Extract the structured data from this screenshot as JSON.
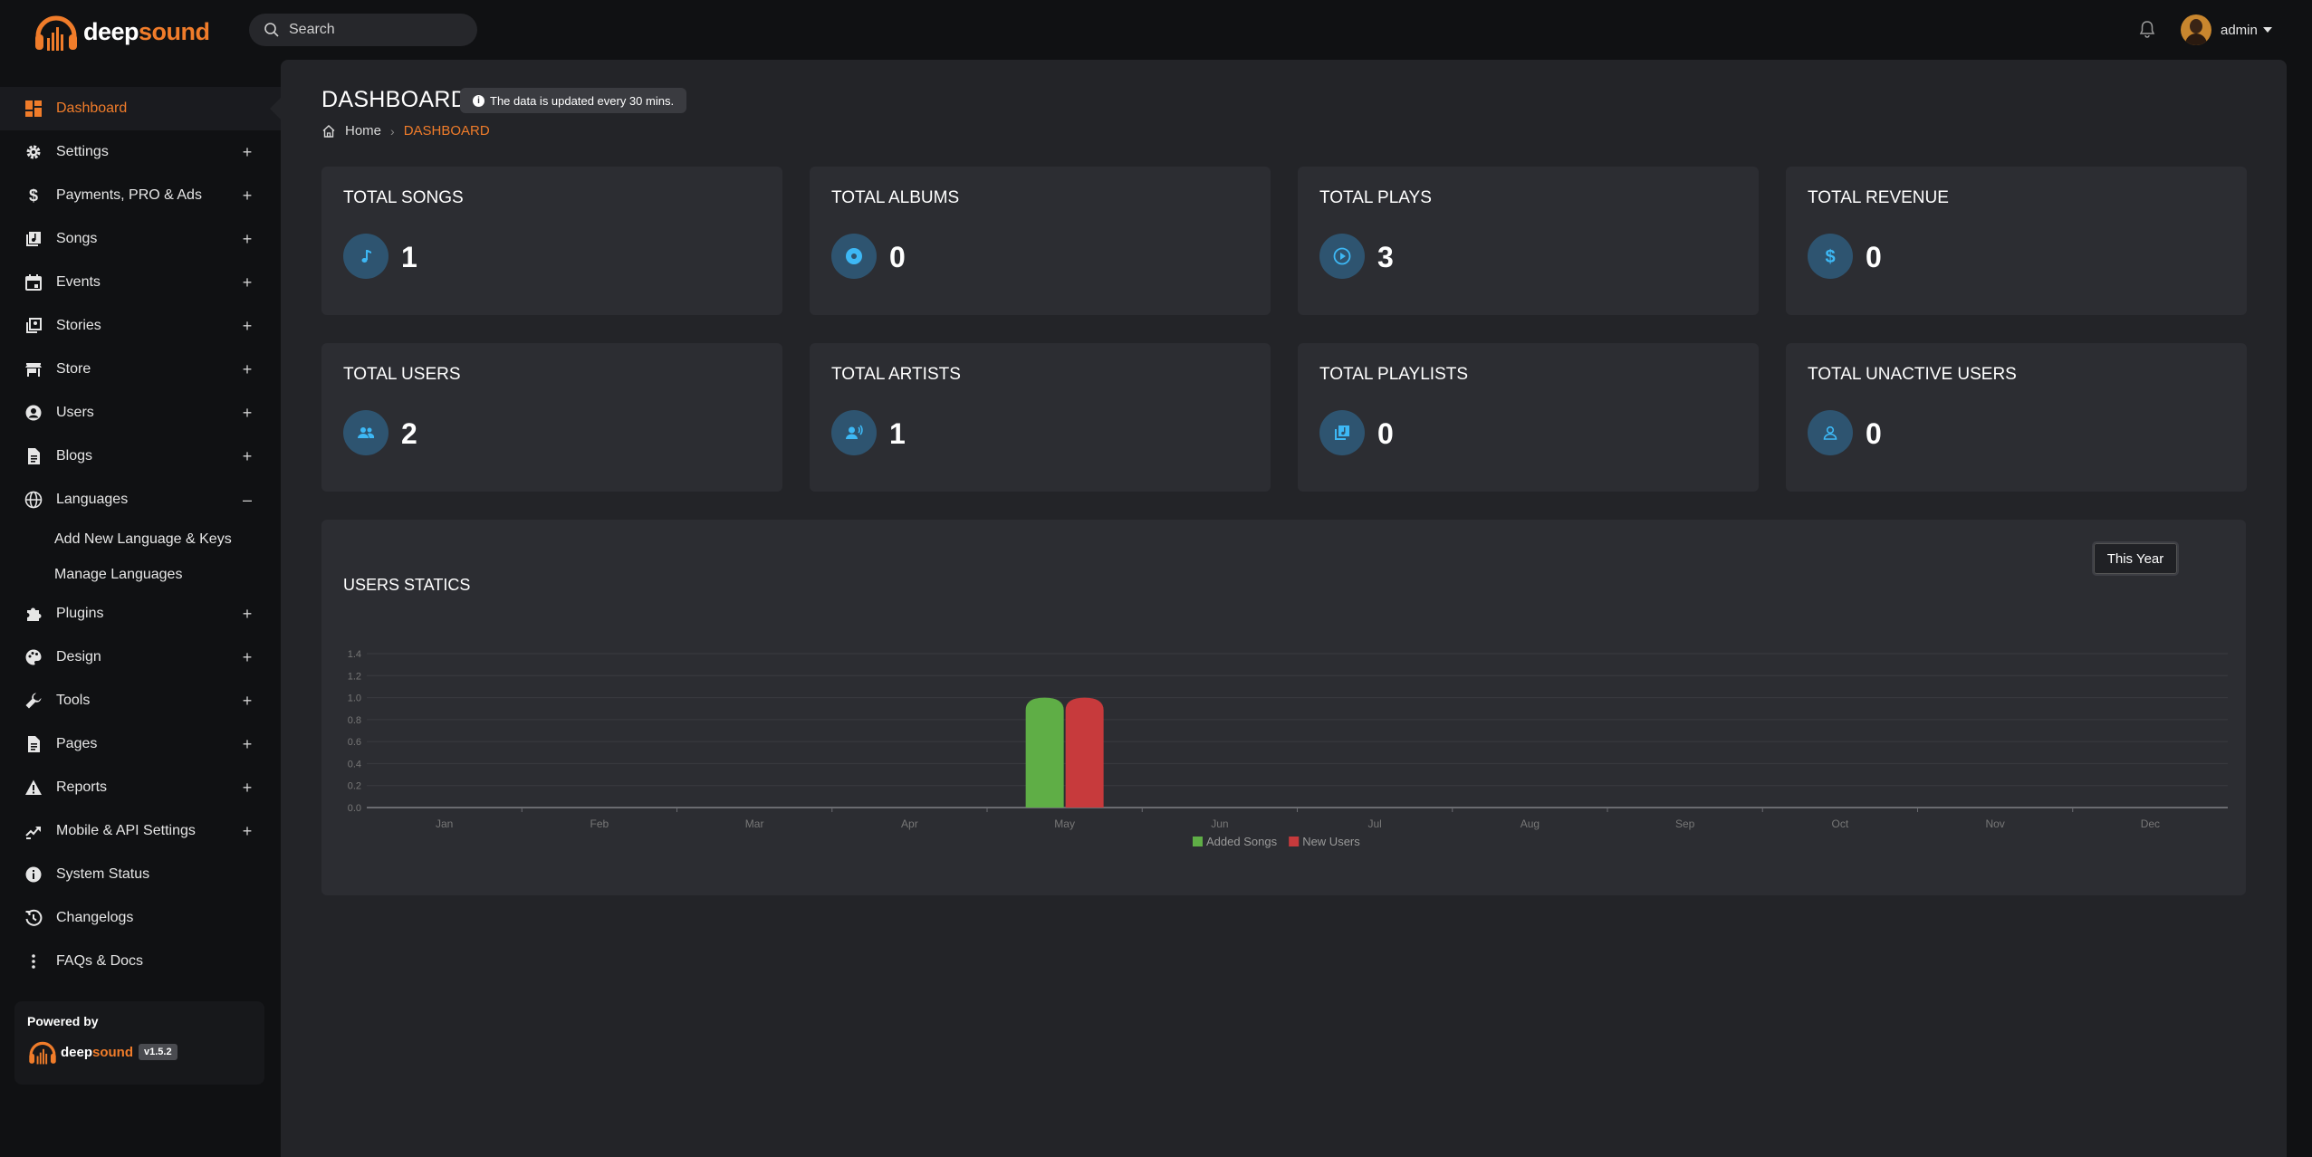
{
  "brand": {
    "name_part1": "deep",
    "name_part2": "sound",
    "accent": "#f07c2a"
  },
  "search": {
    "placeholder": "Search",
    "icon": "search-icon"
  },
  "header": {
    "notification_icon": "bell-icon",
    "user_name": "admin"
  },
  "sidebar": {
    "items": [
      {
        "label": "Dashboard",
        "icon": "dashboard-icon",
        "toggle": "",
        "active": true
      },
      {
        "label": "Settings",
        "icon": "gear-icon",
        "toggle": "+"
      },
      {
        "label": "Payments, PRO & Ads",
        "icon": "dollar-icon",
        "toggle": "+"
      },
      {
        "label": "Songs",
        "icon": "music-library-icon",
        "toggle": "+"
      },
      {
        "label": "Events",
        "icon": "calendar-icon",
        "toggle": "+"
      },
      {
        "label": "Stories",
        "icon": "stories-icon",
        "toggle": "+"
      },
      {
        "label": "Store",
        "icon": "store-icon",
        "toggle": "+"
      },
      {
        "label": "Users",
        "icon": "user-circle-icon",
        "toggle": "+"
      },
      {
        "label": "Blogs",
        "icon": "document-icon",
        "toggle": "+"
      },
      {
        "label": "Languages",
        "icon": "globe-icon",
        "toggle": "–"
      },
      {
        "label": "Plugins",
        "icon": "puzzle-icon",
        "toggle": "+"
      },
      {
        "label": "Design",
        "icon": "palette-icon",
        "toggle": "+"
      },
      {
        "label": "Tools",
        "icon": "wrench-icon",
        "toggle": "+"
      },
      {
        "label": "Pages",
        "icon": "page-icon",
        "toggle": "+"
      },
      {
        "label": "Reports",
        "icon": "warning-icon",
        "toggle": "+"
      },
      {
        "label": "Mobile & API Settings",
        "icon": "api-icon",
        "toggle": "+"
      },
      {
        "label": "System Status",
        "icon": "info-icon",
        "toggle": ""
      },
      {
        "label": "Changelogs",
        "icon": "history-icon",
        "toggle": ""
      },
      {
        "label": "FAQs & Docs",
        "icon": "more-vertical-icon",
        "toggle": ""
      }
    ],
    "languages_sub": [
      "Add New Language & Keys",
      "Manage Languages"
    ],
    "powered_by": "Powered by",
    "version": "v1.5.2"
  },
  "page": {
    "title": "DASHBOARD",
    "info": "The data is updated every 30 mins.",
    "breadcrumb_home": "Home",
    "breadcrumb_current": "DASHBOARD"
  },
  "stats": [
    {
      "title": "TOTAL SONGS",
      "value": "1",
      "icon": "music-note-icon"
    },
    {
      "title": "TOTAL ALBUMS",
      "value": "0",
      "icon": "disc-icon"
    },
    {
      "title": "TOTAL PLAYS",
      "value": "3",
      "icon": "play-circle-icon"
    },
    {
      "title": "TOTAL REVENUE",
      "value": "0",
      "icon": "dollar-icon"
    },
    {
      "title": "TOTAL USERS",
      "value": "2",
      "icon": "users-icon"
    },
    {
      "title": "TOTAL ARTISTS",
      "value": "1",
      "icon": "artist-icon"
    },
    {
      "title": "TOTAL PLAYLISTS",
      "value": "0",
      "icon": "playlist-icon"
    },
    {
      "title": "TOTAL UNACTIVE USERS",
      "value": "0",
      "icon": "user-icon"
    }
  ],
  "chart_section": {
    "title": "USERS STATICS",
    "range_button": "This Year"
  },
  "chart_data": {
    "type": "bar",
    "title": "USERS STATICS",
    "categories": [
      "Jan",
      "Feb",
      "Mar",
      "Apr",
      "May",
      "Jun",
      "Jul",
      "Aug",
      "Sep",
      "Oct",
      "Nov",
      "Dec"
    ],
    "series": [
      {
        "name": "Added Songs",
        "color": "#5fae46",
        "values": [
          0,
          0,
          0,
          0,
          1,
          0,
          0,
          0,
          0,
          0,
          0,
          0
        ]
      },
      {
        "name": "New Users",
        "color": "#c73a3c",
        "values": [
          0,
          0,
          0,
          0,
          1,
          0,
          0,
          0,
          0,
          0,
          0,
          0
        ]
      }
    ],
    "yticks": [
      "0.0",
      "0.2",
      "0.4",
      "0.6",
      "0.8",
      "1.0",
      "1.2",
      "1.4"
    ],
    "ylim": [
      0,
      1.4
    ],
    "grid": true,
    "legend": "bottom-center"
  }
}
